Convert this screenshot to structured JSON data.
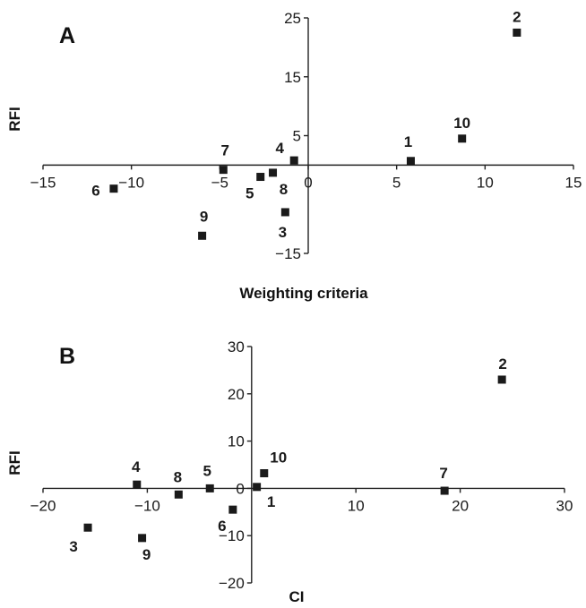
{
  "chart_data": [
    {
      "type": "scatter",
      "panel_label": "A",
      "xlabel": "Weighting criteria",
      "ylabel": "RFI",
      "xlim": [
        -15,
        15
      ],
      "ylim": [
        -15,
        25
      ],
      "x_ticks": [
        -15,
        -10,
        -5,
        0,
        5,
        10,
        15
      ],
      "y_ticks": [
        -15,
        5,
        15,
        25
      ],
      "x_tick_labels": [
        "−15",
        "−10",
        "−5",
        "0",
        "5",
        "10",
        "15"
      ],
      "y_tick_labels": [
        "−15",
        "5",
        "15",
        "25"
      ],
      "grid": false,
      "points": [
        {
          "label": "1",
          "x": 5.8,
          "y": 0.7
        },
        {
          "label": "2",
          "x": 11.8,
          "y": 22.5
        },
        {
          "label": "3",
          "x": -1.3,
          "y": -8.0
        },
        {
          "label": "4",
          "x": -0.8,
          "y": 0.8
        },
        {
          "label": "5",
          "x": -2.7,
          "y": -2.0
        },
        {
          "label": "6",
          "x": -11.0,
          "y": -4.0
        },
        {
          "label": "7",
          "x": -4.8,
          "y": -0.8
        },
        {
          "label": "8",
          "x": -2.0,
          "y": -1.3
        },
        {
          "label": "9",
          "x": -6.0,
          "y": -12.0
        },
        {
          "label": "10",
          "x": 8.7,
          "y": 4.5
        }
      ]
    },
    {
      "type": "scatter",
      "panel_label": "B",
      "xlabel": "CI",
      "ylabel": "RFI",
      "xlim": [
        -20,
        30
      ],
      "ylim": [
        -20,
        30
      ],
      "x_ticks": [
        -20,
        -10,
        10,
        20,
        30
      ],
      "y_ticks": [
        -20,
        -10,
        0,
        10,
        20,
        30
      ],
      "x_tick_labels": [
        "−20",
        "−10",
        "10",
        "20",
        "30"
      ],
      "y_tick_labels": [
        "−20",
        "−10",
        "0",
        "10",
        "20",
        "30"
      ],
      "grid": false,
      "points": [
        {
          "label": "1",
          "x": 0.5,
          "y": 0.3
        },
        {
          "label": "2",
          "x": 24.0,
          "y": 23.0
        },
        {
          "label": "3",
          "x": -15.7,
          "y": -8.3
        },
        {
          "label": "4",
          "x": -11.0,
          "y": 0.8
        },
        {
          "label": "5",
          "x": -4.0,
          "y": 0.0
        },
        {
          "label": "6",
          "x": -1.8,
          "y": -4.5
        },
        {
          "label": "7",
          "x": 18.5,
          "y": -0.5
        },
        {
          "label": "8",
          "x": -7.0,
          "y": -1.3
        },
        {
          "label": "9",
          "x": -10.5,
          "y": -10.5
        },
        {
          "label": "10",
          "x": 1.2,
          "y": 3.2
        }
      ]
    }
  ]
}
